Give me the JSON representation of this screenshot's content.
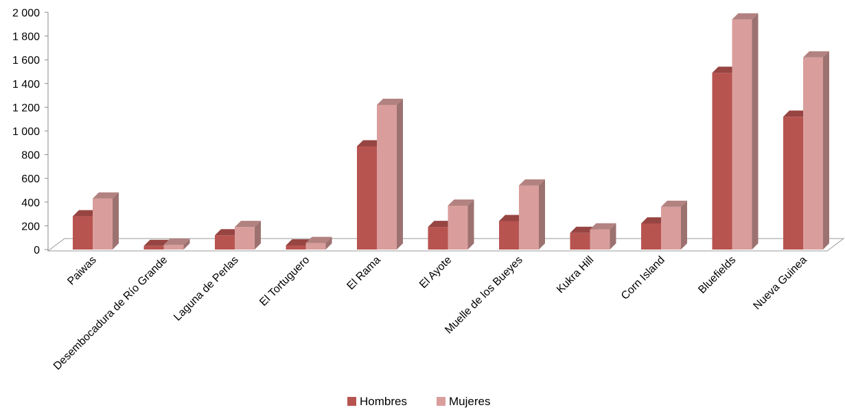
{
  "chart_data": {
    "type": "bar",
    "categories": [
      "Paiwas",
      "Desembocadura de Río Grande",
      "Laguna de Perlas",
      "El Tortuguero",
      "El Rama",
      "El Ayote",
      "Muelle de los Bueyes",
      "Kukra Hill",
      "Corn Island",
      "Bluefields",
      "Nueva Guinea"
    ],
    "series": [
      {
        "name": "Hombres",
        "values": [
          280,
          30,
          120,
          35,
          870,
          190,
          240,
          140,
          220,
          1490,
          1120
        ],
        "color": "#b85450"
      },
      {
        "name": "Mujeres",
        "values": [
          430,
          40,
          190,
          55,
          1220,
          370,
          540,
          170,
          360,
          1940,
          1620
        ],
        "color": "#d99e9c"
      }
    ],
    "yticks": [
      "0",
      "200",
      "400",
      "600",
      "800",
      "1 000",
      "1 200",
      "1 400",
      "1 600",
      "1 800",
      "2 000"
    ],
    "ylim": [
      0,
      2000
    ],
    "legend_position": "bottom",
    "style": "3d-column"
  }
}
